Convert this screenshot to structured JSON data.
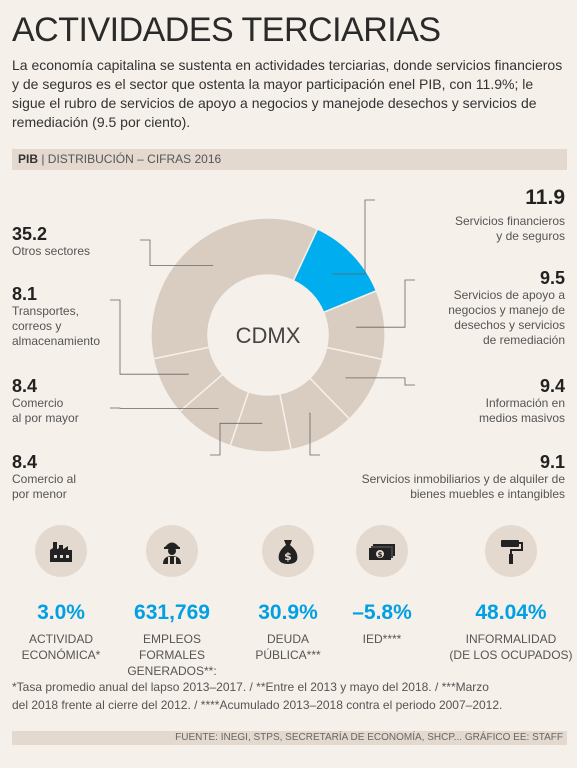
{
  "title": "ACTIVIDADES TERCIARIAS",
  "intro": "La economía capitalina se sustenta en actividades terciarias, donde servicios financieros y de seguros es el sector que ostenta la mayor participación enel PIB, con 11.9%; le sigue el rubro de servicios de apoyo a negocios y manejode desechos y servicios de remediación (9.5 por ciento).",
  "bar": {
    "bold": "PIB",
    "rest": " | DISTRIBUCIÓN – CIFRAS 2016"
  },
  "chart_data": {
    "type": "pie",
    "center_label": "CDMX",
    "slices": [
      {
        "value": "11.9",
        "label": "Servicios financieros y de seguros",
        "color": "#00aeef"
      },
      {
        "value": "9.5",
        "label": "Servicios de apoyo a negocios y manejo de desechos y servicios de remediación",
        "color": "#d9ccc0"
      },
      {
        "value": "9.4",
        "label": "Información en medios masivos",
        "color": "#d9ccc0"
      },
      {
        "value": "9.1",
        "label": "Servicios inmobiliarios y de alquiler de bienes muebles e intangibles",
        "color": "#d9ccc0"
      },
      {
        "value": "8.4",
        "label": "Comercio al por menor",
        "color": "#d9ccc0"
      },
      {
        "value": "8.4",
        "label": "Comercio al por mayor",
        "color": "#d9ccc0"
      },
      {
        "value": "8.1",
        "label": "Transportes, correos y almacenamiento",
        "color": "#d9ccc0"
      },
      {
        "value": "35.2",
        "label": "Otros sectores",
        "color": "#d9ccc0"
      }
    ]
  },
  "labels": {
    "fin": {
      "value": "11.9",
      "l1": "Servicios financieros",
      "l2": "y de seguros"
    },
    "apoyo": {
      "value": "9.5",
      "l1": "Servicios de apoyo a",
      "l2": "negocios y manejo de",
      "l3": "desechos y servicios",
      "l4": "de remediación"
    },
    "info": {
      "value": "9.4",
      "l1": "Información en",
      "l2": "medios masivos"
    },
    "inmob": {
      "value": "9.1",
      "l1": "Servicios inmobiliarios y de alquiler de",
      "l2": "bienes muebles e intangibles"
    },
    "otros": {
      "value": "35.2",
      "l1": "Otros sectores"
    },
    "trans": {
      "value": "8.1",
      "l1": "Transportes,",
      "l2": "correos y",
      "l3": "almacenamiento"
    },
    "mayor": {
      "value": "8.4",
      "l1": "Comercio",
      "l2": "al por mayor"
    },
    "menor": {
      "value": "8.4",
      "l1": "Comercio al",
      "l2": "por menor"
    }
  },
  "stats": [
    {
      "icon": "factory-icon",
      "value": "3.0%",
      "l1": "ACTIVIDAD",
      "l2": "ECONÓMICA*"
    },
    {
      "icon": "worker-icon",
      "value": "631,769",
      "l1": "EMPLEOS FORMALES",
      "l2": "GENERADOS**:"
    },
    {
      "icon": "money-bag-icon",
      "value": "30.9%",
      "l1": "DEUDA",
      "l2": "PÚBLICA***"
    },
    {
      "icon": "banknotes-icon",
      "value": "–5.8%",
      "l1": "IED****",
      "l2": ""
    },
    {
      "icon": "paint-roller-icon",
      "value": "48.04%",
      "l1": "INFORMALIDAD",
      "l2": "(DE LOS OCUPADOS)"
    }
  ],
  "footnote": {
    "line1": "*Tasa promedio anual del lapso 2013–2017. / **Entre el 2013 y mayo del 2018. / ***Marzo",
    "line2": "del 2018 frente al cierre del 2012. / ****Acumulado 2013–2018 contra el periodo 2007–2012."
  },
  "source": "FUENTE: INEGI, STPS, SECRETARÍA DE ECONOMÍA, SHCP... GRÁFICO EE: STAFF"
}
